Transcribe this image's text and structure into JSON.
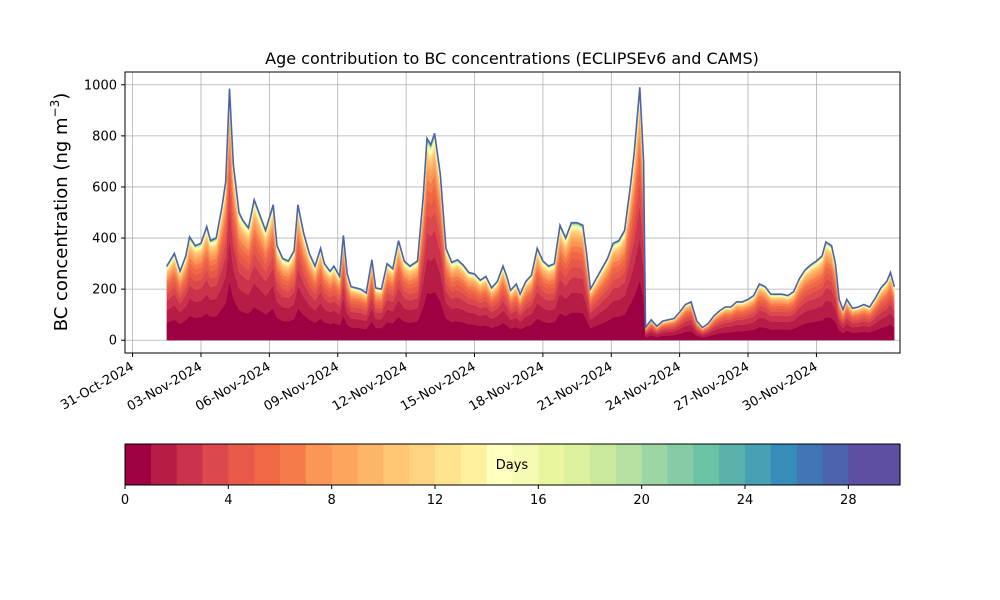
{
  "chart_data": {
    "type": "area",
    "title": "Age contribution to BC concentrations (ECLIPSEv6 and CAMS)",
    "ylabel": "BC concentration (ng m",
    "ylabel_sup": "−3",
    "ylabel_close": ")",
    "ylim": [
      -50,
      1050
    ],
    "y_ticks": [
      0,
      200,
      400,
      600,
      800,
      1000
    ],
    "xlim": [
      "2024-10-30T16:00",
      "2024-12-03T16:00"
    ],
    "x_ticks": [
      "2024-10-31",
      "2024-11-03",
      "2024-11-06",
      "2024-11-09",
      "2024-11-12",
      "2024-11-15",
      "2024-11-18",
      "2024-11-21",
      "2024-11-24",
      "2024-11-27",
      "2024-11-30"
    ],
    "x_tick_labels": [
      "31-Oct-2024",
      "03-Nov-2024",
      "06-Nov-2024",
      "09-Nov-2024",
      "12-Nov-2024",
      "15-Nov-2024",
      "18-Nov-2024",
      "21-Nov-2024",
      "24-Nov-2024",
      "27-Nov-2024",
      "30-Nov-2024"
    ],
    "grid": true,
    "total_series": {
      "name": "total",
      "points": [
        [
          "2024-11-01T12:00",
          290
        ],
        [
          "2024-11-01T20:00",
          340
        ],
        [
          "2024-11-02T02:00",
          270
        ],
        [
          "2024-11-02T08:00",
          330
        ],
        [
          "2024-11-02T12:00",
          405
        ],
        [
          "2024-11-02T18:00",
          370
        ],
        [
          "2024-11-03T00:00",
          380
        ],
        [
          "2024-11-03T06:00",
          445
        ],
        [
          "2024-11-03T10:00",
          390
        ],
        [
          "2024-11-03T16:00",
          400
        ],
        [
          "2024-11-03T22:00",
          520
        ],
        [
          "2024-11-04T02:00",
          620
        ],
        [
          "2024-11-04T06:00",
          985
        ],
        [
          "2024-11-04T10:00",
          690
        ],
        [
          "2024-11-04T16:00",
          500
        ],
        [
          "2024-11-04T20:00",
          470
        ],
        [
          "2024-11-05T02:00",
          440
        ],
        [
          "2024-11-05T08:00",
          550
        ],
        [
          "2024-11-05T14:00",
          490
        ],
        [
          "2024-11-05T20:00",
          430
        ],
        [
          "2024-11-06T00:00",
          480
        ],
        [
          "2024-11-06T04:00",
          530
        ],
        [
          "2024-11-06T08:00",
          370
        ],
        [
          "2024-11-06T14:00",
          320
        ],
        [
          "2024-11-06T20:00",
          310
        ],
        [
          "2024-11-07T02:00",
          350
        ],
        [
          "2024-11-07T06:00",
          530
        ],
        [
          "2024-11-07T12:00",
          420
        ],
        [
          "2024-11-07T18:00",
          340
        ],
        [
          "2024-11-08T00:00",
          290
        ],
        [
          "2024-11-08T06:00",
          360
        ],
        [
          "2024-11-08T10:00",
          300
        ],
        [
          "2024-11-08T16:00",
          270
        ],
        [
          "2024-11-08T20:00",
          290
        ],
        [
          "2024-11-09T02:00",
          250
        ],
        [
          "2024-11-09T06:00",
          410
        ],
        [
          "2024-11-09T10:00",
          260
        ],
        [
          "2024-11-09T14:00",
          210
        ],
        [
          "2024-11-10T00:00",
          200
        ],
        [
          "2024-11-10T06:00",
          185
        ],
        [
          "2024-11-10T12:00",
          315
        ],
        [
          "2024-11-10T16:00",
          205
        ],
        [
          "2024-11-10T22:00",
          200
        ],
        [
          "2024-11-11T04:00",
          300
        ],
        [
          "2024-11-11T10:00",
          280
        ],
        [
          "2024-11-11T16:00",
          390
        ],
        [
          "2024-11-11T22:00",
          310
        ],
        [
          "2024-11-12T04:00",
          290
        ],
        [
          "2024-11-12T12:00",
          310
        ],
        [
          "2024-11-12T18:00",
          560
        ],
        [
          "2024-11-12T22:00",
          790
        ],
        [
          "2024-11-13T02:00",
          765
        ],
        [
          "2024-11-13T06:00",
          810
        ],
        [
          "2024-11-13T12:00",
          650
        ],
        [
          "2024-11-13T18:00",
          360
        ],
        [
          "2024-11-14T00:00",
          305
        ],
        [
          "2024-11-14T06:00",
          315
        ],
        [
          "2024-11-14T12:00",
          295
        ],
        [
          "2024-11-14T18:00",
          265
        ],
        [
          "2024-11-15T00:00",
          260
        ],
        [
          "2024-11-15T06:00",
          235
        ],
        [
          "2024-11-15T12:00",
          250
        ],
        [
          "2024-11-15T18:00",
          205
        ],
        [
          "2024-11-16T00:00",
          230
        ],
        [
          "2024-11-16T06:00",
          290
        ],
        [
          "2024-11-16T10:00",
          250
        ],
        [
          "2024-11-16T14:00",
          195
        ],
        [
          "2024-11-16T20:00",
          220
        ],
        [
          "2024-11-17T00:00",
          180
        ],
        [
          "2024-11-17T06:00",
          230
        ],
        [
          "2024-11-17T12:00",
          255
        ],
        [
          "2024-11-17T18:00",
          360
        ],
        [
          "2024-11-18T00:00",
          310
        ],
        [
          "2024-11-18T06:00",
          290
        ],
        [
          "2024-11-18T12:00",
          300
        ],
        [
          "2024-11-18T18:00",
          450
        ],
        [
          "2024-11-19T00:00",
          400
        ],
        [
          "2024-11-19T06:00",
          460
        ],
        [
          "2024-11-19T12:00",
          460
        ],
        [
          "2024-11-19T18:00",
          450
        ],
        [
          "2024-11-19T22:00",
          340
        ],
        [
          "2024-11-20T02:00",
          200
        ],
        [
          "2024-11-20T08:00",
          240
        ],
        [
          "2024-11-20T14:00",
          280
        ],
        [
          "2024-11-20T20:00",
          320
        ],
        [
          "2024-11-21T02:00",
          380
        ],
        [
          "2024-11-21T08:00",
          390
        ],
        [
          "2024-11-21T14:00",
          430
        ],
        [
          "2024-11-21T20:00",
          600
        ],
        [
          "2024-11-22T00:00",
          730
        ],
        [
          "2024-11-22T06:00",
          990
        ],
        [
          "2024-11-22T10:00",
          700
        ],
        [
          "2024-11-22T12:00",
          50
        ],
        [
          "2024-11-22T18:00",
          80
        ],
        [
          "2024-11-23T00:00",
          55
        ],
        [
          "2024-11-23T06:00",
          75
        ],
        [
          "2024-11-23T12:00",
          80
        ],
        [
          "2024-11-23T18:00",
          85
        ],
        [
          "2024-11-24T00:00",
          110
        ],
        [
          "2024-11-24T06:00",
          140
        ],
        [
          "2024-11-24T12:00",
          150
        ],
        [
          "2024-11-24T18:00",
          75
        ],
        [
          "2024-11-25T00:00",
          50
        ],
        [
          "2024-11-25T06:00",
          65
        ],
        [
          "2024-11-25T12:00",
          95
        ],
        [
          "2024-11-25T18:00",
          115
        ],
        [
          "2024-11-26T00:00",
          130
        ],
        [
          "2024-11-26T06:00",
          130
        ],
        [
          "2024-11-26T12:00",
          150
        ],
        [
          "2024-11-26T18:00",
          150
        ],
        [
          "2024-11-27T00:00",
          160
        ],
        [
          "2024-11-27T06:00",
          175
        ],
        [
          "2024-11-27T12:00",
          220
        ],
        [
          "2024-11-27T18:00",
          210
        ],
        [
          "2024-11-28T00:00",
          180
        ],
        [
          "2024-11-28T06:00",
          180
        ],
        [
          "2024-11-28T12:00",
          180
        ],
        [
          "2024-11-28T18:00",
          175
        ],
        [
          "2024-11-29T00:00",
          190
        ],
        [
          "2024-11-29T06:00",
          240
        ],
        [
          "2024-11-29T12:00",
          275
        ],
        [
          "2024-11-29T18:00",
          295
        ],
        [
          "2024-11-30T00:00",
          310
        ],
        [
          "2024-11-30T06:00",
          330
        ],
        [
          "2024-11-30T10:00",
          385
        ],
        [
          "2024-11-30T16:00",
          370
        ],
        [
          "2024-11-30T20:00",
          300
        ],
        [
          "2024-12-01T00:00",
          160
        ],
        [
          "2024-12-01T04:00",
          120
        ],
        [
          "2024-12-01T08:00",
          160
        ],
        [
          "2024-12-01T14:00",
          125
        ],
        [
          "2024-12-01T20:00",
          130
        ],
        [
          "2024-12-02T02:00",
          140
        ],
        [
          "2024-12-02T08:00",
          130
        ],
        [
          "2024-12-02T14:00",
          165
        ],
        [
          "2024-12-02T20:00",
          205
        ],
        [
          "2024-12-03T02:00",
          230
        ],
        [
          "2024-12-03T06:00",
          265
        ],
        [
          "2024-12-03T10:00",
          210
        ]
      ]
    },
    "age_share_by_day": [
      0.24,
      0.17,
      0.13,
      0.09,
      0.07,
      0.06,
      0.05,
      0.04,
      0.03,
      0.025,
      0.02,
      0.016,
      0.013,
      0.011,
      0.009,
      0.007,
      0.006,
      0.005,
      0.004,
      0.003,
      0.0025,
      0.002,
      0.0018,
      0.0015,
      0.0012,
      0.001,
      0.001,
      0.0008,
      0.0007,
      0.0006
    ],
    "colorbar": {
      "label": "Days",
      "range": [
        0,
        30
      ],
      "ticks": [
        0,
        4,
        8,
        12,
        16,
        20,
        24,
        28
      ],
      "colors": [
        "#9e0142",
        "#b71c46",
        "#cb334c",
        "#dc494c",
        "#e75948",
        "#f06744",
        "#f67b4b",
        "#fa9656",
        "#fca55d",
        "#fdb568",
        "#fec573",
        "#fed480",
        "#fee38f",
        "#fff19e",
        "#ffffbf",
        "#f6fbb3",
        "#eaf69e",
        "#dbf19e",
        "#cbe99d",
        "#b5e0a2",
        "#9cd6a4",
        "#83cca5",
        "#6bc3a5",
        "#59b1aa",
        "#47a0b3",
        "#388cba",
        "#3f77b4",
        "#4a63ac",
        "#5e4fa2",
        "#5e4fa2"
      ]
    }
  }
}
